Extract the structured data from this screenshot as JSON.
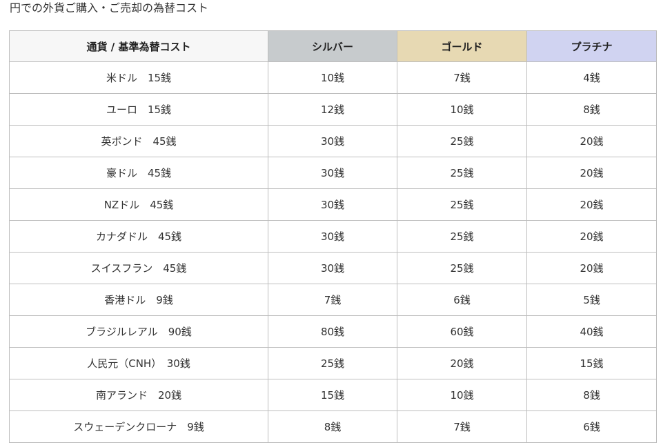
{
  "caption": "円での外貨ご購入・ご売却の為替コスト",
  "colors": {
    "header_base": "#f7f7f7",
    "header_silver": "#c7cbcd",
    "header_gold": "#e7d9b3",
    "header_platinum": "#d0d3f1",
    "border": "#bdbdbd"
  },
  "table": {
    "headers": [
      "通貨 / 基準為替コスト",
      "シルバー",
      "ゴールド",
      "プラチナ"
    ],
    "rows": [
      [
        "米ドル　15銭",
        "10銭",
        "7銭",
        "4銭"
      ],
      [
        "ユーロ　15銭",
        "12銭",
        "10銭",
        "8銭"
      ],
      [
        "英ポンド　45銭",
        "30銭",
        "25銭",
        "20銭"
      ],
      [
        "豪ドル　45銭",
        "30銭",
        "25銭",
        "20銭"
      ],
      [
        "NZドル　45銭",
        "30銭",
        "25銭",
        "20銭"
      ],
      [
        "カナダドル　45銭",
        "30銭",
        "25銭",
        "20銭"
      ],
      [
        "スイスフラン　45銭",
        "30銭",
        "25銭",
        "20銭"
      ],
      [
        "香港ドル　9銭",
        "7銭",
        "6銭",
        "5銭"
      ],
      [
        "ブラジルレアル　90銭",
        "80銭",
        "60銭",
        "40銭"
      ],
      [
        "人民元（CNH）　30銭",
        "25銭",
        "20銭",
        "15銭"
      ],
      [
        "南アランド　20銭",
        "15銭",
        "10銭",
        "8銭"
      ],
      [
        "スウェーデンクローナ　9銭",
        "8銭",
        "7銭",
        "6銭"
      ]
    ]
  }
}
